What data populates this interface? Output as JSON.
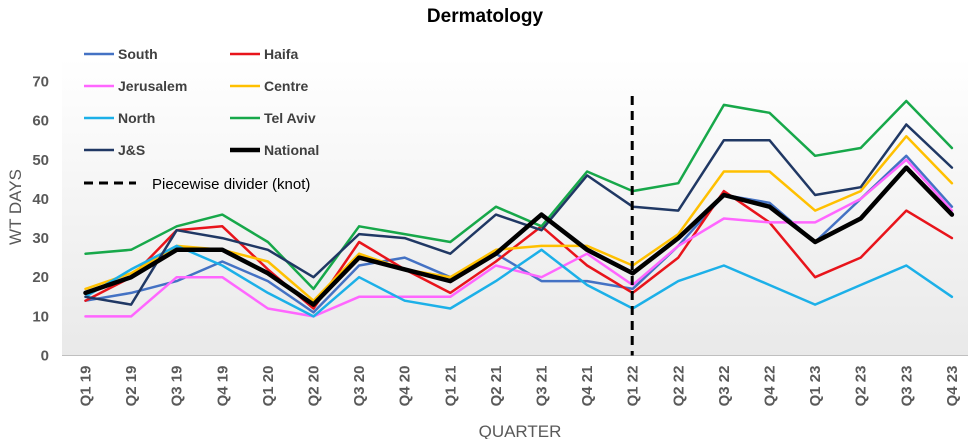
{
  "chart_data": {
    "type": "line",
    "title": "Dermatology",
    "xlabel": "QUARTER",
    "ylabel": "WT DAYS",
    "ylim": [
      0,
      70
    ],
    "yticks": [
      0,
      10,
      20,
      30,
      40,
      50,
      60,
      70
    ],
    "grid": false,
    "legend_position": "top-left",
    "categories": [
      "Q1 19",
      "Q2 19",
      "Q3 19",
      "Q4 19",
      "Q1 20",
      "Q2 20",
      "Q3 20",
      "Q4 20",
      "Q1 21",
      "Q2 21",
      "Q3 21",
      "Q4 21",
      "Q1 22",
      "Q2 22",
      "Q3 22",
      "Q4 22",
      "Q1 23",
      "Q2 23",
      "Q3 23",
      "Q4 23"
    ],
    "series": [
      {
        "name": "South",
        "color": "#4472C4",
        "width": 2.5,
        "values": [
          14,
          16,
          19,
          24,
          19,
          11,
          23,
          25,
          20,
          26,
          19,
          19,
          17,
          28,
          41,
          39,
          29,
          40,
          51,
          38
        ]
      },
      {
        "name": "Haifa",
        "color": "#E8141B",
        "width": 2.5,
        "values": [
          14,
          20,
          32,
          33,
          22,
          12,
          29,
          22,
          16,
          24,
          33,
          23,
          16,
          25,
          42,
          34,
          20,
          25,
          37,
          30
        ]
      },
      {
        "name": "Jerusalem",
        "color": "#FF66FF",
        "width": 2.5,
        "values": [
          10,
          10,
          20,
          20,
          12,
          10,
          15,
          15,
          15,
          23,
          20,
          26,
          18,
          28,
          35,
          34,
          34,
          40,
          50,
          37
        ]
      },
      {
        "name": "Centre",
        "color": "#FFC000",
        "width": 2.5,
        "values": [
          17,
          21,
          28,
          27,
          24,
          14,
          26,
          22,
          20,
          27,
          28,
          28,
          23,
          31,
          47,
          47,
          37,
          42,
          56,
          44
        ]
      },
      {
        "name": "North",
        "color": "#1CB0E8",
        "width": 2.5,
        "values": [
          15,
          22,
          28,
          23,
          16,
          10,
          20,
          14,
          12,
          19,
          27,
          18,
          12,
          19,
          23,
          18,
          13,
          18,
          23,
          15
        ]
      },
      {
        "name": "Tel Aviv",
        "color": "#17A84A",
        "width": 2.5,
        "values": [
          26,
          27,
          33,
          36,
          29,
          17,
          33,
          31,
          29,
          38,
          33,
          47,
          42,
          44,
          64,
          62,
          51,
          53,
          65,
          53
        ]
      },
      {
        "name": "J&S",
        "color": "#203864",
        "width": 2.5,
        "values": [
          15,
          13,
          32,
          30,
          27,
          20,
          31,
          30,
          26,
          36,
          32,
          46,
          38,
          37,
          55,
          55,
          41,
          43,
          59,
          48
        ]
      },
      {
        "name": "National",
        "color": "#000000",
        "width": 4.5,
        "values": [
          16,
          20,
          27,
          27,
          21,
          13,
          25,
          22,
          19,
          26,
          36,
          27,
          21,
          30,
          41,
          38,
          29,
          35,
          48,
          36
        ]
      }
    ],
    "annotations": [
      {
        "type": "vertical-dashed-line",
        "at_category": "Q1 22",
        "label": "Piecewise divider (knot)"
      }
    ]
  }
}
